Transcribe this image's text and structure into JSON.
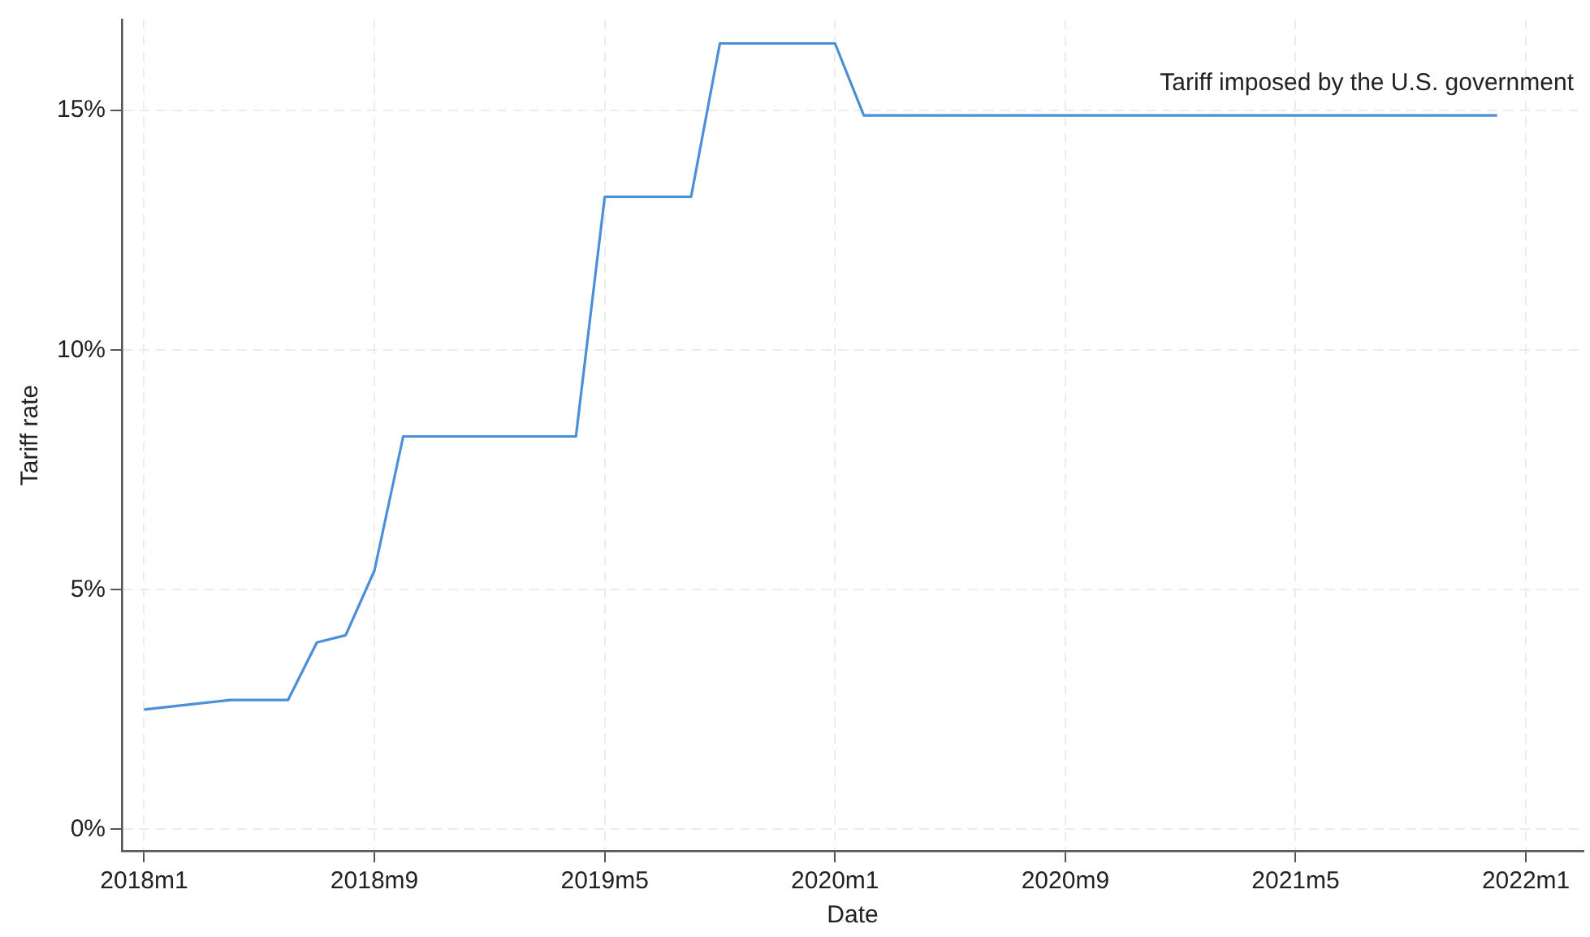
{
  "chart_data": {
    "type": "line",
    "xlabel": "Date",
    "ylabel": "Tariff rate",
    "x": [
      "2018-01",
      "2018-04",
      "2018-06",
      "2018-07",
      "2018-08",
      "2018-09",
      "2018-10",
      "2019-04",
      "2019-05",
      "2019-08",
      "2019-09",
      "2020-01",
      "2020-02",
      "2021-12"
    ],
    "series": [
      {
        "name": "Tariff imposed by the U.S. government",
        "color": "#4a90d9",
        "values": [
          2.5,
          2.7,
          2.7,
          3.9,
          4.05,
          5.4,
          8.2,
          8.2,
          13.2,
          13.2,
          16.4,
          16.4,
          14.9,
          14.9
        ]
      }
    ],
    "xlim": [
      "2017-12-08",
      "2022-03-01"
    ],
    "xticks": [
      {
        "value": "2018-01",
        "label": "2018m1"
      },
      {
        "value": "2018-09",
        "label": "2018m9"
      },
      {
        "value": "2019-05",
        "label": "2019m5"
      },
      {
        "value": "2020-01",
        "label": "2020m1"
      },
      {
        "value": "2020-09",
        "label": "2020m9"
      },
      {
        "value": "2021-05",
        "label": "2021m5"
      },
      {
        "value": "2022-01",
        "label": "2022m1"
      }
    ],
    "ylim": [
      -0.45,
      16.9
    ],
    "yticks": [
      {
        "value": 0,
        "label": "0%"
      },
      {
        "value": 5,
        "label": "5%"
      },
      {
        "value": 10,
        "label": "10%"
      },
      {
        "value": 15,
        "label": "15%"
      }
    ],
    "grid": true
  }
}
